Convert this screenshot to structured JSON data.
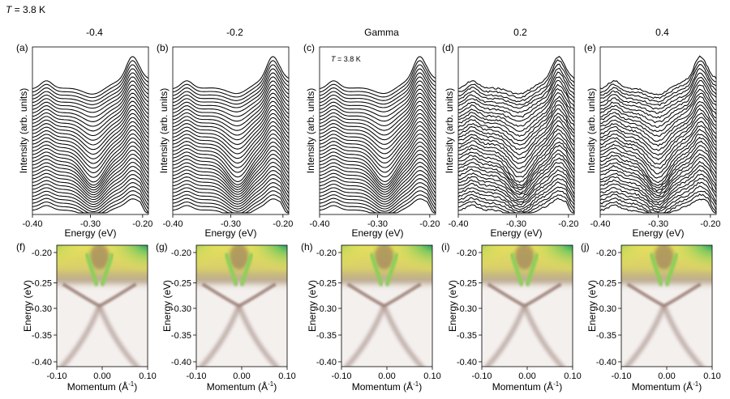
{
  "figure": {
    "temperature_label": {
      "symbol": "T",
      "rest": " = 3.8 K"
    },
    "top_row": {
      "panels": [
        {
          "letter": "(a)",
          "header": "-0.4",
          "inset": ""
        },
        {
          "letter": "(b)",
          "header": "-0.2",
          "inset": ""
        },
        {
          "letter": "(c)",
          "header": "Gamma",
          "inset": "T = 3.8 K"
        },
        {
          "letter": "(d)",
          "header": "0.2",
          "inset": ""
        },
        {
          "letter": "(e)",
          "header": "0.4",
          "inset": ""
        }
      ],
      "y_label": "Intensity (arb. units)",
      "x_label": "Energy (eV)",
      "x_ticks": [
        "-0.40",
        "-0.30",
        "-0.20"
      ]
    },
    "bottom_row": {
      "panels": [
        {
          "letter": "(f)",
          "y_ticks": [
            "-0.20",
            "-0.25",
            "-0.30",
            "-0.35",
            "-0.40"
          ]
        },
        {
          "letter": "(g)",
          "y_ticks": [
            "-0.20",
            "-0.25",
            "-0.30",
            "-0.35",
            "-0.40"
          ]
        },
        {
          "letter": "(h)",
          "y_ticks": [
            "-0.20",
            "-0.25",
            "-0.30",
            "-0.35",
            "-0.40"
          ]
        },
        {
          "letter": "(i)",
          "y_ticks": [
            "-0.20",
            "-0.25",
            "-0.30",
            "-0.35",
            "-0.40"
          ]
        },
        {
          "letter": "(j)",
          "y_ticks": [
            "-0.20",
            "-0.25",
            "-0.30",
            "-0.35",
            "-0.40"
          ]
        }
      ],
      "y_label": "Energy (eV)",
      "x_label_prefix": "Momentum (Å",
      "x_label_exp": "-1",
      "x_label_suffix": ")",
      "x_ticks": [
        "-0.10",
        "0.00",
        "0.10"
      ]
    },
    "colors": {
      "ink": "#000000",
      "background": "#ffffff",
      "map_low": "#f3efed",
      "map_high_1": "#e8e45a",
      "map_high_2": "#1f9a5a",
      "map_peak": "#1e3c9a"
    }
  }
}
